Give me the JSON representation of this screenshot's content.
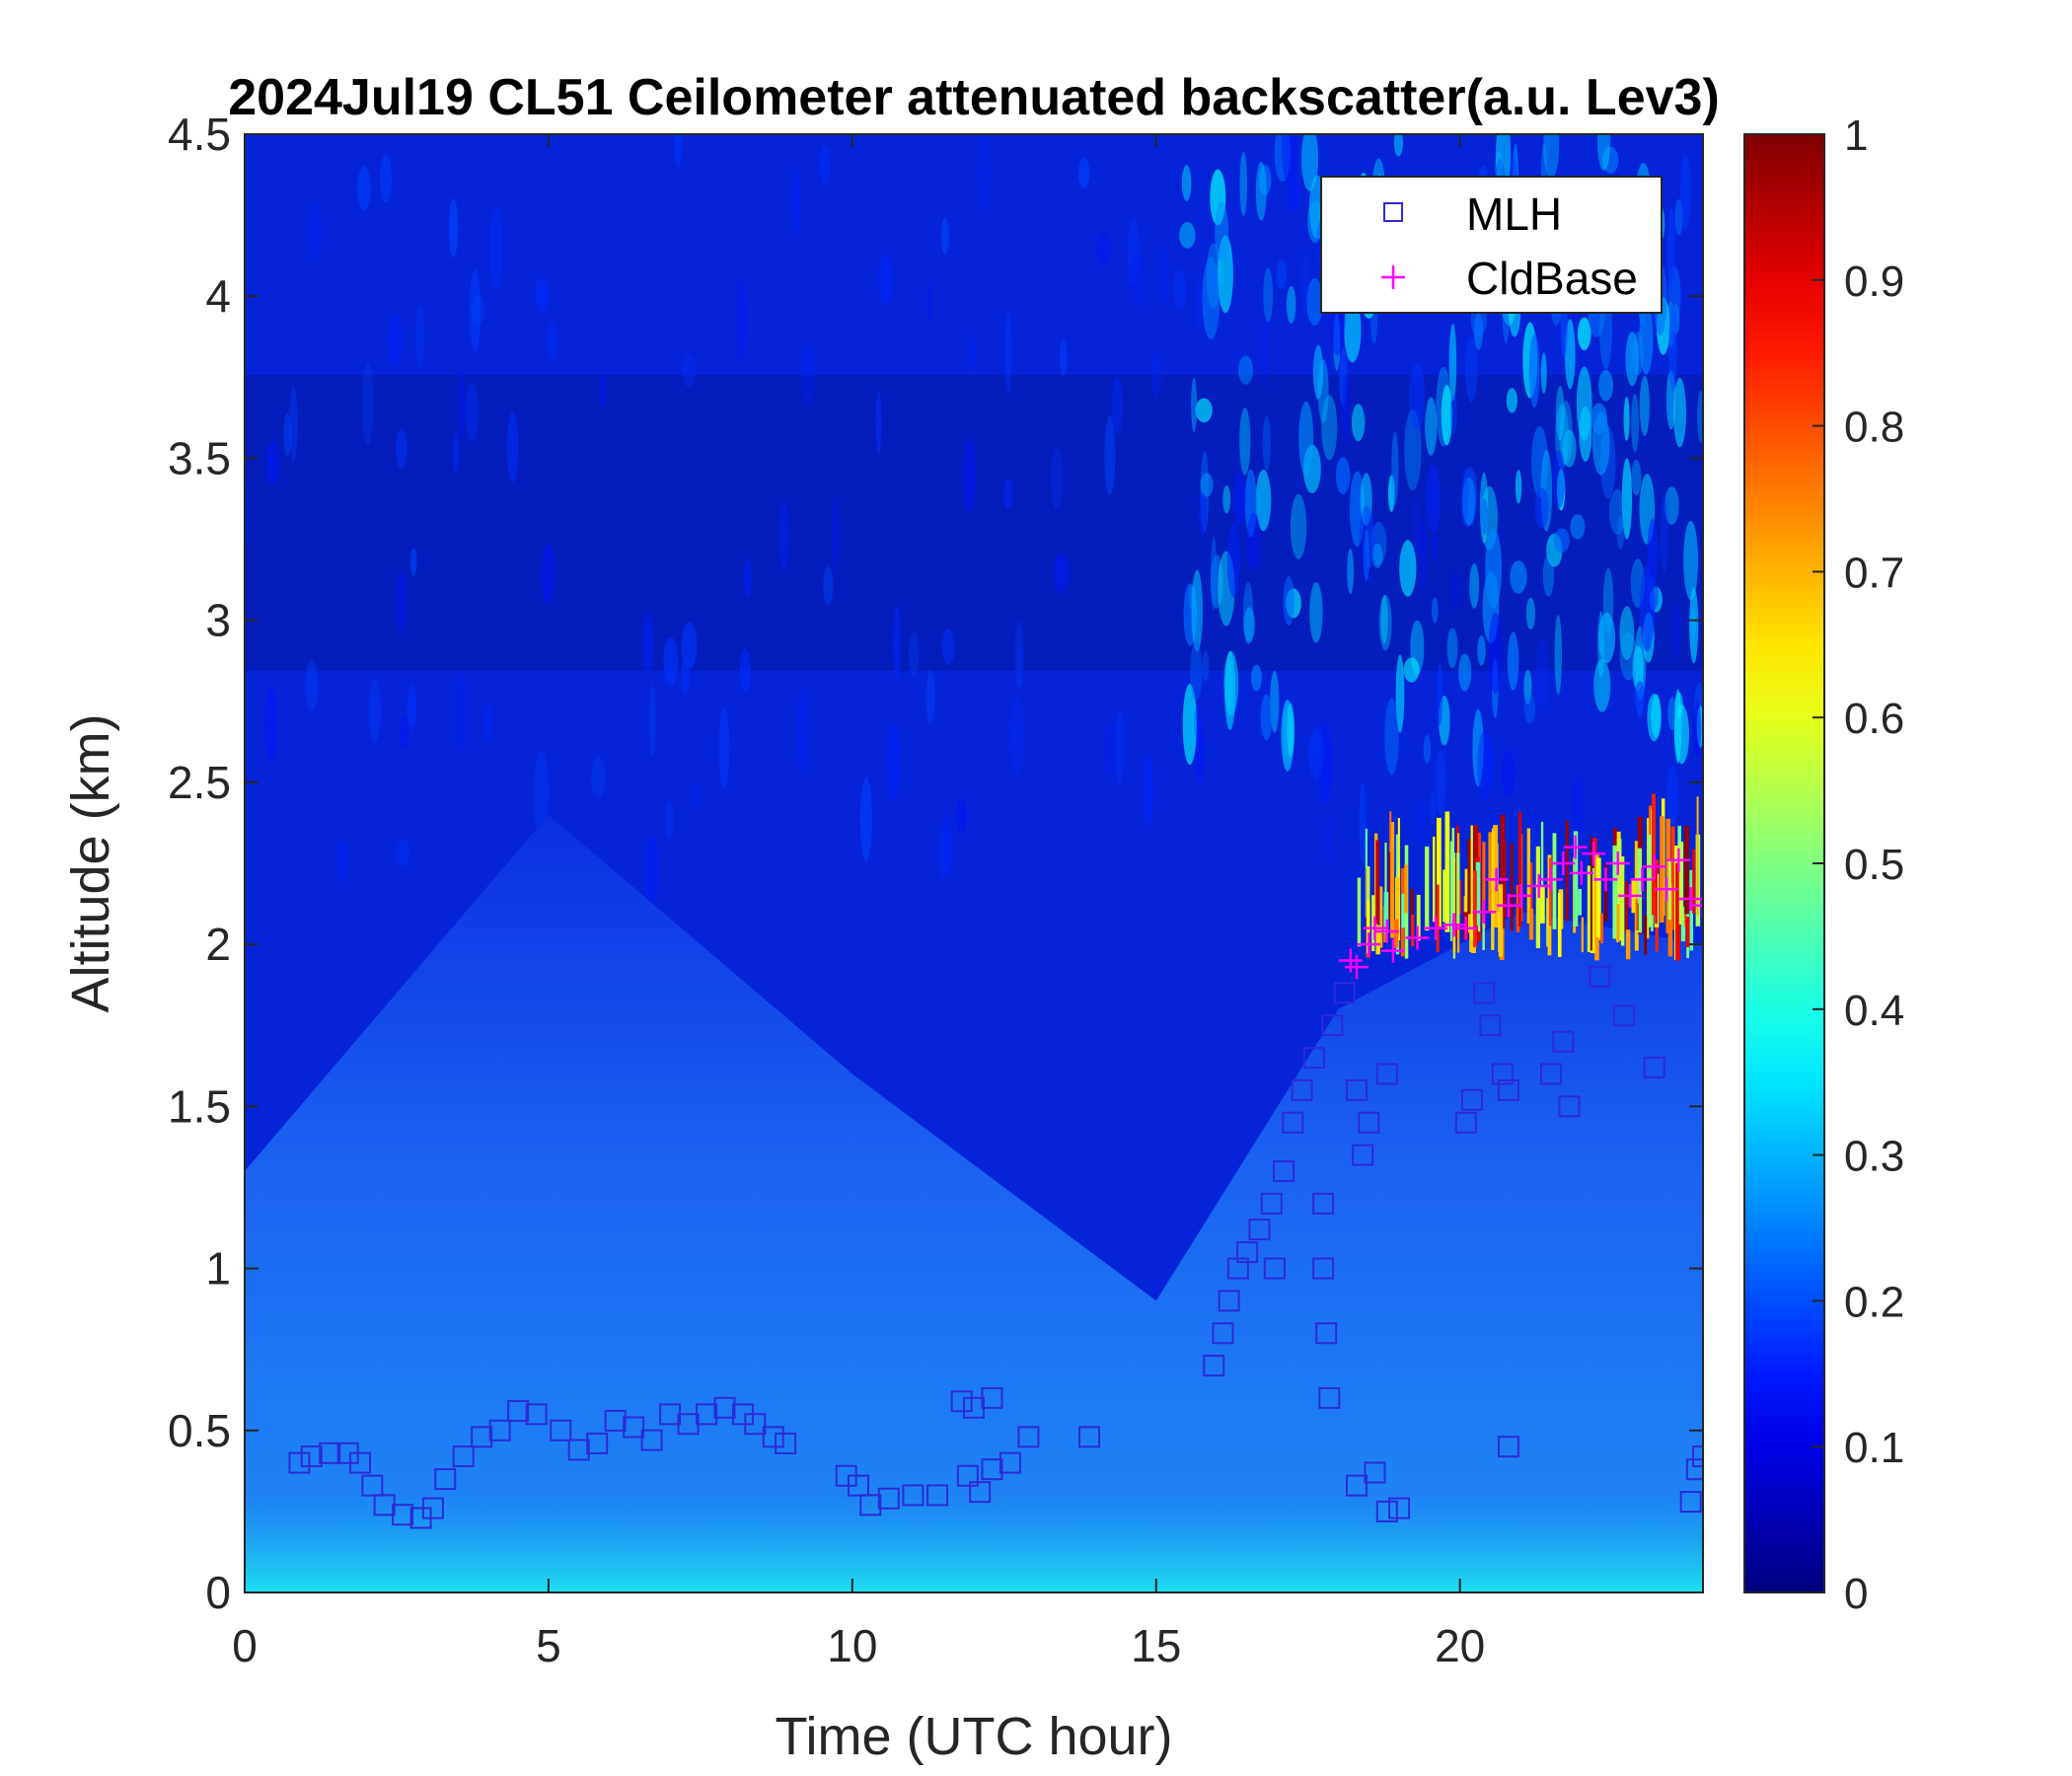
{
  "chart_data": {
    "type": "heatmap",
    "title": "2024Jul19 CL51 Ceilometer attenuated backscatter(a.u. Lev3)",
    "xlabel": "Time (UTC hour)",
    "ylabel": "Altitude (km)",
    "xlim": [
      0,
      24
    ],
    "ylim": [
      0,
      4.5
    ],
    "x_ticks": [
      0,
      5,
      10,
      15,
      20
    ],
    "x_tick_labels": [
      "0",
      "5",
      "10",
      "15",
      "20"
    ],
    "y_ticks": [
      0,
      0.5,
      1,
      1.5,
      2,
      2.5,
      3,
      3.5,
      4,
      4.5
    ],
    "y_tick_labels": [
      "0",
      "0.5",
      "1",
      "1.5",
      "2",
      "2.5",
      "3",
      "3.5",
      "4",
      "4.5"
    ],
    "colorbar": {
      "colormap": "jet",
      "range": [
        0,
        1
      ],
      "ticks": [
        0,
        0.1,
        0.2,
        0.3,
        0.4,
        0.5,
        0.6,
        0.7,
        0.8,
        0.9,
        1
      ],
      "tick_labels": [
        "0",
        "0.1",
        "0.2",
        "0.3",
        "0.4",
        "0.5",
        "0.6",
        "0.7",
        "0.8",
        "0.9",
        "1"
      ]
    },
    "legend": {
      "position": "top-right",
      "entries": [
        {
          "label": "MLH",
          "marker": "square",
          "color": "#2b2bd8"
        },
        {
          "label": "CldBase",
          "marker": "plus",
          "color": "#ff00ff"
        }
      ]
    },
    "series": [
      {
        "name": "MLH",
        "marker": "square",
        "color": "#2b2bd8",
        "points": [
          [
            0.9,
            0.4
          ],
          [
            1.1,
            0.42
          ],
          [
            1.4,
            0.43
          ],
          [
            1.7,
            0.43
          ],
          [
            1.9,
            0.4
          ],
          [
            2.1,
            0.33
          ],
          [
            2.3,
            0.27
          ],
          [
            2.6,
            0.24
          ],
          [
            2.9,
            0.23
          ],
          [
            3.1,
            0.26
          ],
          [
            3.3,
            0.35
          ],
          [
            3.6,
            0.42
          ],
          [
            3.9,
            0.48
          ],
          [
            4.2,
            0.5
          ],
          [
            4.5,
            0.56
          ],
          [
            4.8,
            0.55
          ],
          [
            5.2,
            0.5
          ],
          [
            5.5,
            0.44
          ],
          [
            5.8,
            0.46
          ],
          [
            6.1,
            0.53
          ],
          [
            6.4,
            0.51
          ],
          [
            6.7,
            0.47
          ],
          [
            7.0,
            0.55
          ],
          [
            7.3,
            0.52
          ],
          [
            7.6,
            0.55
          ],
          [
            7.9,
            0.57
          ],
          [
            8.2,
            0.55
          ],
          [
            8.4,
            0.52
          ],
          [
            8.7,
            0.48
          ],
          [
            8.9,
            0.46
          ],
          [
            9.9,
            0.36
          ],
          [
            10.1,
            0.33
          ],
          [
            10.3,
            0.27
          ],
          [
            10.6,
            0.29
          ],
          [
            11.0,
            0.3
          ],
          [
            11.4,
            0.3
          ],
          [
            11.8,
            0.59
          ],
          [
            12.0,
            0.57
          ],
          [
            12.3,
            0.6
          ],
          [
            11.9,
            0.36
          ],
          [
            12.1,
            0.31
          ],
          [
            12.3,
            0.38
          ],
          [
            12.6,
            0.4
          ],
          [
            12.9,
            0.48
          ],
          [
            13.9,
            0.48
          ],
          [
            15.95,
            0.7
          ],
          [
            16.1,
            0.8
          ],
          [
            16.2,
            0.9
          ],
          [
            16.35,
            1.0
          ],
          [
            16.5,
            1.05
          ],
          [
            16.7,
            1.12
          ],
          [
            16.9,
            1.2
          ],
          [
            16.95,
            1.0
          ],
          [
            17.1,
            1.3
          ],
          [
            17.25,
            1.45
          ],
          [
            17.4,
            1.55
          ],
          [
            17.6,
            1.65
          ],
          [
            17.75,
            1.2
          ],
          [
            17.75,
            1.0
          ],
          [
            17.8,
            0.8
          ],
          [
            17.85,
            0.6
          ],
          [
            17.9,
            1.75
          ],
          [
            18.1,
            1.85
          ],
          [
            18.3,
            1.55
          ],
          [
            18.4,
            1.35
          ],
          [
            18.5,
            1.45
          ],
          [
            18.8,
            1.6
          ],
          [
            18.3,
            0.33
          ],
          [
            18.6,
            0.37
          ],
          [
            18.8,
            0.25
          ],
          [
            19.0,
            0.26
          ],
          [
            20.1,
            1.45
          ],
          [
            20.2,
            1.52
          ],
          [
            20.4,
            1.85
          ],
          [
            20.5,
            1.75
          ],
          [
            20.7,
            1.6
          ],
          [
            20.8,
            1.55
          ],
          [
            20.8,
            0.45
          ],
          [
            21.5,
            1.6
          ],
          [
            21.7,
            1.7
          ],
          [
            21.8,
            1.5
          ],
          [
            22.3,
            1.9
          ],
          [
            22.7,
            1.78
          ],
          [
            23.2,
            1.62
          ],
          [
            23.8,
            0.28
          ],
          [
            23.9,
            0.38
          ],
          [
            24.0,
            0.42
          ]
        ]
      },
      {
        "name": "CldBase",
        "marker": "plus",
        "color": "#ff00ff",
        "points": [
          [
            18.2,
            1.95
          ],
          [
            18.3,
            1.93
          ],
          [
            18.5,
            2.0
          ],
          [
            18.6,
            2.05
          ],
          [
            18.8,
            2.04
          ],
          [
            18.9,
            1.98
          ],
          [
            19.3,
            2.02
          ],
          [
            19.6,
            2.05
          ],
          [
            19.9,
            2.06
          ],
          [
            20.1,
            2.05
          ],
          [
            20.4,
            2.1
          ],
          [
            20.6,
            2.2
          ],
          [
            20.8,
            2.12
          ],
          [
            21.0,
            2.15
          ],
          [
            21.3,
            2.18
          ],
          [
            21.5,
            2.2
          ],
          [
            21.7,
            2.25
          ],
          [
            21.9,
            2.3
          ],
          [
            22.0,
            2.22
          ],
          [
            22.2,
            2.28
          ],
          [
            22.4,
            2.2
          ],
          [
            22.6,
            2.25
          ],
          [
            22.8,
            2.15
          ],
          [
            23.0,
            2.2
          ],
          [
            23.2,
            2.24
          ],
          [
            23.4,
            2.17
          ],
          [
            23.6,
            2.26
          ],
          [
            23.8,
            2.14
          ],
          [
            24.0,
            2.12
          ]
        ]
      }
    ],
    "backscatter_field": {
      "units": "a.u.",
      "surface_layer": {
        "height_km": 0.3,
        "value": 0.33
      },
      "boundary_layer": [
        {
          "x": 0,
          "top_km": 1.3,
          "value": 0.2
        },
        {
          "x": 5,
          "top_km": 2.4,
          "value": 0.2
        },
        {
          "x": 10,
          "top_km": 1.6,
          "value": 0.17
        },
        {
          "x": 15,
          "top_km": 0.9,
          "value": 0.15
        },
        {
          "x": 18,
          "top_km": 1.8,
          "value": 0.23
        },
        {
          "x": 21,
          "top_km": 2.1,
          "value": 0.26
        },
        {
          "x": 24,
          "top_km": 2.0,
          "value": 0.26
        }
      ],
      "free_troposphere_value": 0.08,
      "cloud_layer": {
        "x_range": [
          18,
          24
        ],
        "base_km": 1.9,
        "top_km": 2.5,
        "peak_value": 1.0
      }
    }
  }
}
